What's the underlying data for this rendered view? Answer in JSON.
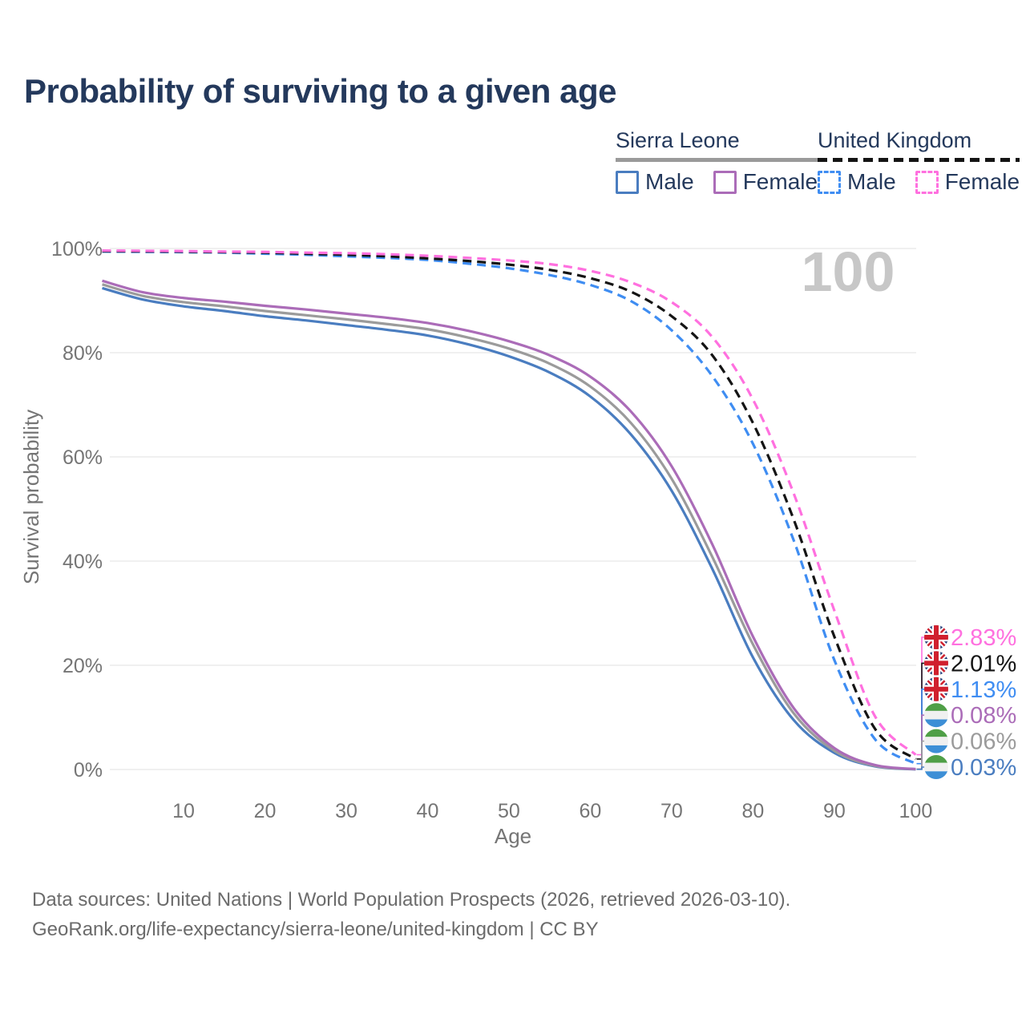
{
  "title": "Probability of surviving to a given age",
  "watermark": "100",
  "legend": {
    "groups": [
      {
        "label": "Sierra Leone",
        "underline_style": "solid",
        "underline_color": "#9a9a9a",
        "items": [
          {
            "label": "Male",
            "color": "#4a7dc0",
            "dashed": false
          },
          {
            "label": "Female",
            "color": "#ab6cb8",
            "dashed": false
          }
        ]
      },
      {
        "label": "United Kingdom",
        "underline_style": "dashed",
        "underline_color": "#141414",
        "items": [
          {
            "label": "Male",
            "color": "#3f8df2",
            "dashed": true
          },
          {
            "label": "Female",
            "color": "#ff70df",
            "dashed": true
          }
        ]
      }
    ]
  },
  "chart_data": {
    "type": "line",
    "title": "Probability of surviving to a given age",
    "xlabel": "Age",
    "ylabel": "Survival probability",
    "xlim": [
      0,
      100
    ],
    "ylim": [
      0,
      100
    ],
    "grid": true,
    "legend_position": "top-right",
    "xticks": [
      {
        "value": 10,
        "label": "10"
      },
      {
        "value": 20,
        "label": "20"
      },
      {
        "value": 30,
        "label": "30"
      },
      {
        "value": 40,
        "label": "40"
      },
      {
        "value": 50,
        "label": "50"
      },
      {
        "value": 60,
        "label": "60"
      },
      {
        "value": 70,
        "label": "70"
      },
      {
        "value": 80,
        "label": "80"
      },
      {
        "value": 90,
        "label": "90"
      },
      {
        "value": 100,
        "label": "100"
      }
    ],
    "yticks": [
      {
        "value": 0,
        "label": "0%"
      },
      {
        "value": 20,
        "label": "20%"
      },
      {
        "value": 40,
        "label": "40%"
      },
      {
        "value": 60,
        "label": "60%"
      },
      {
        "value": 80,
        "label": "80%"
      },
      {
        "value": 100,
        "label": "100%"
      }
    ],
    "ages": [
      0,
      5,
      10,
      15,
      20,
      25,
      30,
      35,
      40,
      45,
      50,
      55,
      60,
      65,
      70,
      75,
      80,
      85,
      90,
      95,
      100
    ],
    "series": [
      {
        "name": "Sierra Leone Male",
        "color": "#4a7dc0",
        "dashed": false,
        "flag": "sierra-leone",
        "end_label": "0.03%",
        "values": [
          92.4,
          90.2,
          88.9,
          88.0,
          87.0,
          86.2,
          85.3,
          84.4,
          83.3,
          81.6,
          79.3,
          76.2,
          71.6,
          64.3,
          53.5,
          38.5,
          21.5,
          9.5,
          3.2,
          0.6,
          0.03
        ]
      },
      {
        "name": "Sierra Leone Total",
        "color": "#9b9b9b",
        "dashed": false,
        "flag": "sierra-leone",
        "end_label": "0.06%",
        "values": [
          93.1,
          90.9,
          89.7,
          88.9,
          88.0,
          87.2,
          86.4,
          85.5,
          84.5,
          82.9,
          80.8,
          77.9,
          73.5,
          66.5,
          55.8,
          40.8,
          24.0,
          10.8,
          3.6,
          0.7,
          0.06
        ]
      },
      {
        "name": "Sierra Leone Female",
        "color": "#ab6cb8",
        "dashed": false,
        "flag": "sierra-leone",
        "end_label": "0.08%",
        "values": [
          93.8,
          91.6,
          90.5,
          89.8,
          89.0,
          88.3,
          87.5,
          86.7,
          85.7,
          84.2,
          82.2,
          79.5,
          75.4,
          68.7,
          58.2,
          43.2,
          25.5,
          11.8,
          4.1,
          0.85,
          0.08
        ]
      },
      {
        "name": "United Kingdom Male",
        "color": "#3f8df2",
        "dashed": true,
        "flag": "uk",
        "end_label": "1.13%",
        "values": [
          99.4,
          99.35,
          99.3,
          99.2,
          99.0,
          98.8,
          98.5,
          98.2,
          97.8,
          97.1,
          96.2,
          94.9,
          93.0,
          89.9,
          84.3,
          75.5,
          62.5,
          44.0,
          21.0,
          5.8,
          1.13
        ]
      },
      {
        "name": "United Kingdom Total",
        "color": "#141414",
        "dashed": true,
        "flag": "uk",
        "end_label": "2.01%",
        "values": [
          99.5,
          99.45,
          99.4,
          99.3,
          99.2,
          99.0,
          98.8,
          98.5,
          98.1,
          97.6,
          96.9,
          95.9,
          94.3,
          91.7,
          87.0,
          79.5,
          66.5,
          48.0,
          25.5,
          7.8,
          2.01
        ]
      },
      {
        "name": "United Kingdom Female",
        "color": "#ff70df",
        "dashed": true,
        "flag": "uk",
        "end_label": "2.83%",
        "values": [
          99.6,
          99.55,
          99.5,
          99.4,
          99.35,
          99.2,
          99.1,
          98.9,
          98.6,
          98.2,
          97.7,
          97.0,
          95.7,
          93.5,
          89.7,
          83.0,
          71.0,
          53.0,
          30.5,
          10.2,
          2.83
        ]
      }
    ],
    "flag_colors": {
      "uk_bg": "#1f3c78",
      "uk_cross": "#d0202e",
      "uk_white": "#ffffff",
      "sl_green": "#4f9f47",
      "sl_white": "#f0f0f0",
      "sl_blue": "#3d8fd6"
    },
    "axis_text_color": "#757575",
    "grid_color": "#ececec",
    "watermark_color": "#c7c7c7"
  },
  "footer": {
    "line1": "Data sources: United Nations | World Population Prospects (2026, retrieved 2026-03-10).",
    "line2": "GeoRank.org/life-expectancy/sierra-leone/united-kingdom | CC BY"
  }
}
